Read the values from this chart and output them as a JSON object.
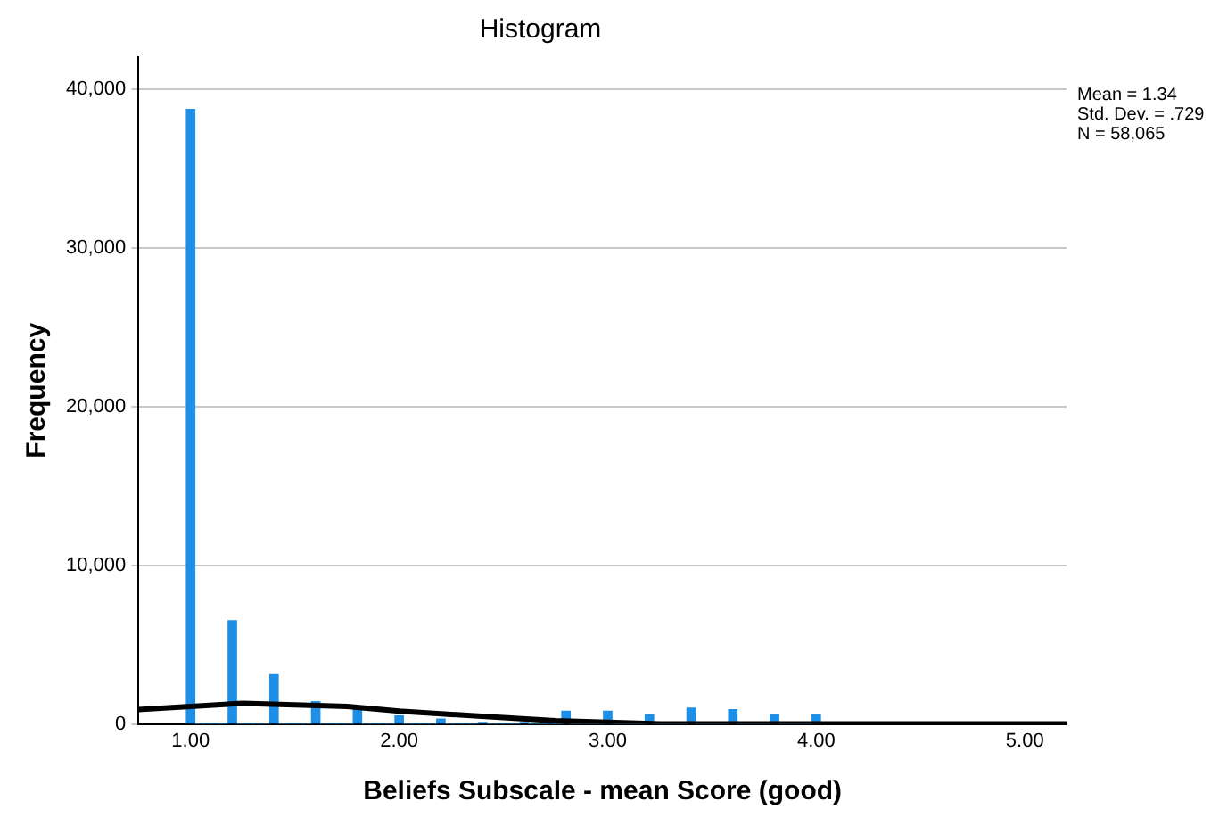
{
  "chart_data": {
    "type": "histogram",
    "title": "Histogram",
    "xlabel": "Beliefs Subscale - mean Score (good)",
    "ylabel": "Frequency",
    "annotations": [
      "Mean = 1.34",
      "Std. Dev. = .729",
      "N = 58,065"
    ],
    "bins": [
      0.98,
      1.02,
      1.06,
      1.1,
      1.14,
      1.18,
      1.22,
      1.26,
      1.3,
      1.34,
      1.38,
      1.42,
      1.46,
      1.5,
      1.54,
      1.58,
      1.62,
      1.66,
      1.7,
      1.74,
      1.78,
      1.82,
      1.86,
      1.9,
      1.94,
      1.98,
      2.02,
      2.06,
      2.1,
      2.14,
      2.18,
      2.22,
      2.26,
      2.3,
      2.34,
      2.38,
      2.42,
      2.46,
      2.5,
      2.54,
      2.58,
      2.62,
      2.66,
      2.7,
      2.74,
      2.78,
      2.82,
      2.86,
      2.9,
      2.94,
      2.98,
      3.02,
      3.06,
      3.1,
      3.14,
      3.18,
      3.22,
      3.26,
      3.3,
      3.34,
      3.38,
      3.42,
      3.46,
      3.5,
      3.54,
      3.58,
      3.62,
      3.66,
      3.7,
      3.74,
      3.78,
      3.82,
      3.86,
      3.9,
      3.94,
      3.98,
      4.02
    ],
    "values": [
      38700,
      0,
      0,
      0,
      0,
      6500,
      0,
      0,
      0,
      0,
      3100,
      0,
      0,
      0,
      0,
      1400,
      0,
      0,
      0,
      0,
      900,
      0,
      0,
      0,
      0,
      500,
      0,
      0,
      0,
      0,
      300,
      0,
      0,
      0,
      0,
      100,
      0,
      0,
      0,
      0,
      100,
      0,
      0,
      0,
      0,
      800,
      0,
      0,
      0,
      0,
      800,
      0,
      0,
      0,
      0,
      600,
      0,
      0,
      0,
      0,
      1000,
      0,
      0,
      0,
      0,
      900,
      0,
      0,
      0,
      0,
      600,
      0,
      0,
      0,
      0,
      600
    ],
    "color": "#1e8fe6",
    "series": [
      {
        "type": "line",
        "color": "#000000",
        "x": [
          0.75,
          1.0,
          1.25,
          1.5,
          1.75,
          2.0,
          2.25,
          2.5,
          2.75,
          3.0,
          3.25,
          3.5,
          3.75,
          4.0,
          4.5,
          5.2
        ],
        "values": [
          900,
          1100,
          1300,
          1200,
          1100,
          800,
          600,
          400,
          200,
          100,
          0,
          0,
          0,
          0,
          0,
          0
        ]
      }
    ],
    "xlim": [
      0.75,
      5.2
    ],
    "xticks": [
      {
        "value": 1,
        "label": "1.00"
      },
      {
        "value": 2,
        "label": "2.00"
      },
      {
        "value": 3,
        "label": "3.00"
      },
      {
        "value": 4,
        "label": "4.00"
      },
      {
        "value": 5,
        "label": "5.00"
      }
    ],
    "ylim": [
      0,
      42000
    ],
    "yticks": [
      {
        "value": 0,
        "label": "0"
      },
      {
        "value": 10000,
        "label": "10,000"
      },
      {
        "value": 20000,
        "label": "20,000"
      },
      {
        "value": 30000,
        "label": "30,000"
      },
      {
        "value": 40000,
        "label": "40,000"
      }
    ],
    "grid": "y",
    "legend": false,
    "marker": "none",
    "line_style": "solid"
  }
}
